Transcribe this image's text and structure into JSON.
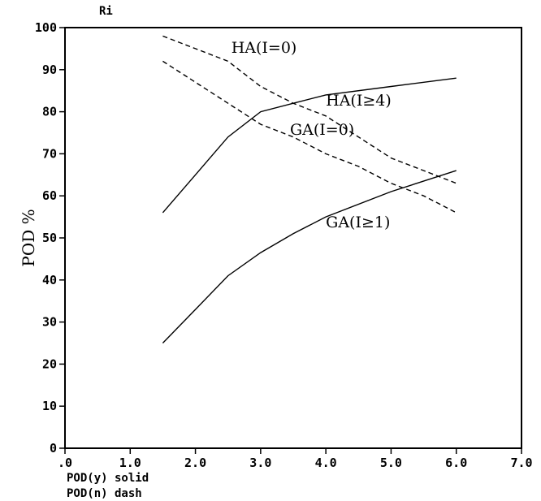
{
  "chart_data": {
    "type": "line",
    "title": "Ri",
    "ylabel": "POD %",
    "xlabel_lines": [
      "POD(y) solid",
      "POD(n) dash"
    ],
    "xlim": [
      0,
      7
    ],
    "ylim": [
      0,
      100
    ],
    "x_ticks": [
      0,
      1,
      2,
      3,
      4,
      5,
      6,
      7
    ],
    "x_tick_labels": [
      ".0",
      "1.0",
      "2.0",
      "3.0",
      "4.0",
      "5.0",
      "6.0",
      "7.0"
    ],
    "y_ticks": [
      0,
      10,
      20,
      30,
      40,
      50,
      60,
      70,
      80,
      90,
      100
    ],
    "y_tick_labels": [
      "0",
      "10",
      "20",
      "30",
      "40",
      "50",
      "60",
      "70",
      "80",
      "90",
      "100"
    ],
    "grid": false,
    "series": [
      {
        "name": "HA(I≥4)",
        "style": "solid",
        "x": [
          1.5,
          2.0,
          2.5,
          3.0,
          3.5,
          4.0,
          5.0,
          6.0
        ],
        "values": [
          56,
          65,
          74,
          80,
          82,
          84,
          86,
          88
        ]
      },
      {
        "name": "GA(I≥1)",
        "style": "solid",
        "x": [
          1.5,
          2.0,
          2.5,
          3.0,
          3.5,
          4.0,
          5.0,
          6.0
        ],
        "values": [
          25,
          33,
          41,
          46.5,
          51,
          55,
          61,
          66
        ]
      },
      {
        "name": "HA(I=0)",
        "style": "dashed",
        "x": [
          1.5,
          2.0,
          2.5,
          3.0,
          3.5,
          4.0,
          4.5,
          5.0,
          5.5,
          6.0
        ],
        "values": [
          98,
          95,
          92,
          86,
          82,
          79,
          74,
          69,
          66,
          63
        ]
      },
      {
        "name": "GA(I=0)",
        "style": "dashed",
        "x": [
          1.5,
          2.0,
          2.5,
          3.0,
          3.5,
          4.0,
          4.5,
          5.0,
          5.5,
          6.0
        ],
        "values": [
          92,
          87,
          82,
          77,
          74,
          70,
          67,
          63,
          60,
          56
        ]
      }
    ],
    "annotations": [
      {
        "text": "HA(I=0)",
        "x": 2.55,
        "y": 94
      },
      {
        "text": "HA(I≥4)",
        "x": 4.0,
        "y": 81.5
      },
      {
        "text": "GA(I=0)",
        "x": 3.45,
        "y": 74.5
      },
      {
        "text": "GA(I≥1)",
        "x": 4.0,
        "y": 52.5
      }
    ],
    "colors": {
      "line": "#000000",
      "background": "#ffffff"
    }
  }
}
